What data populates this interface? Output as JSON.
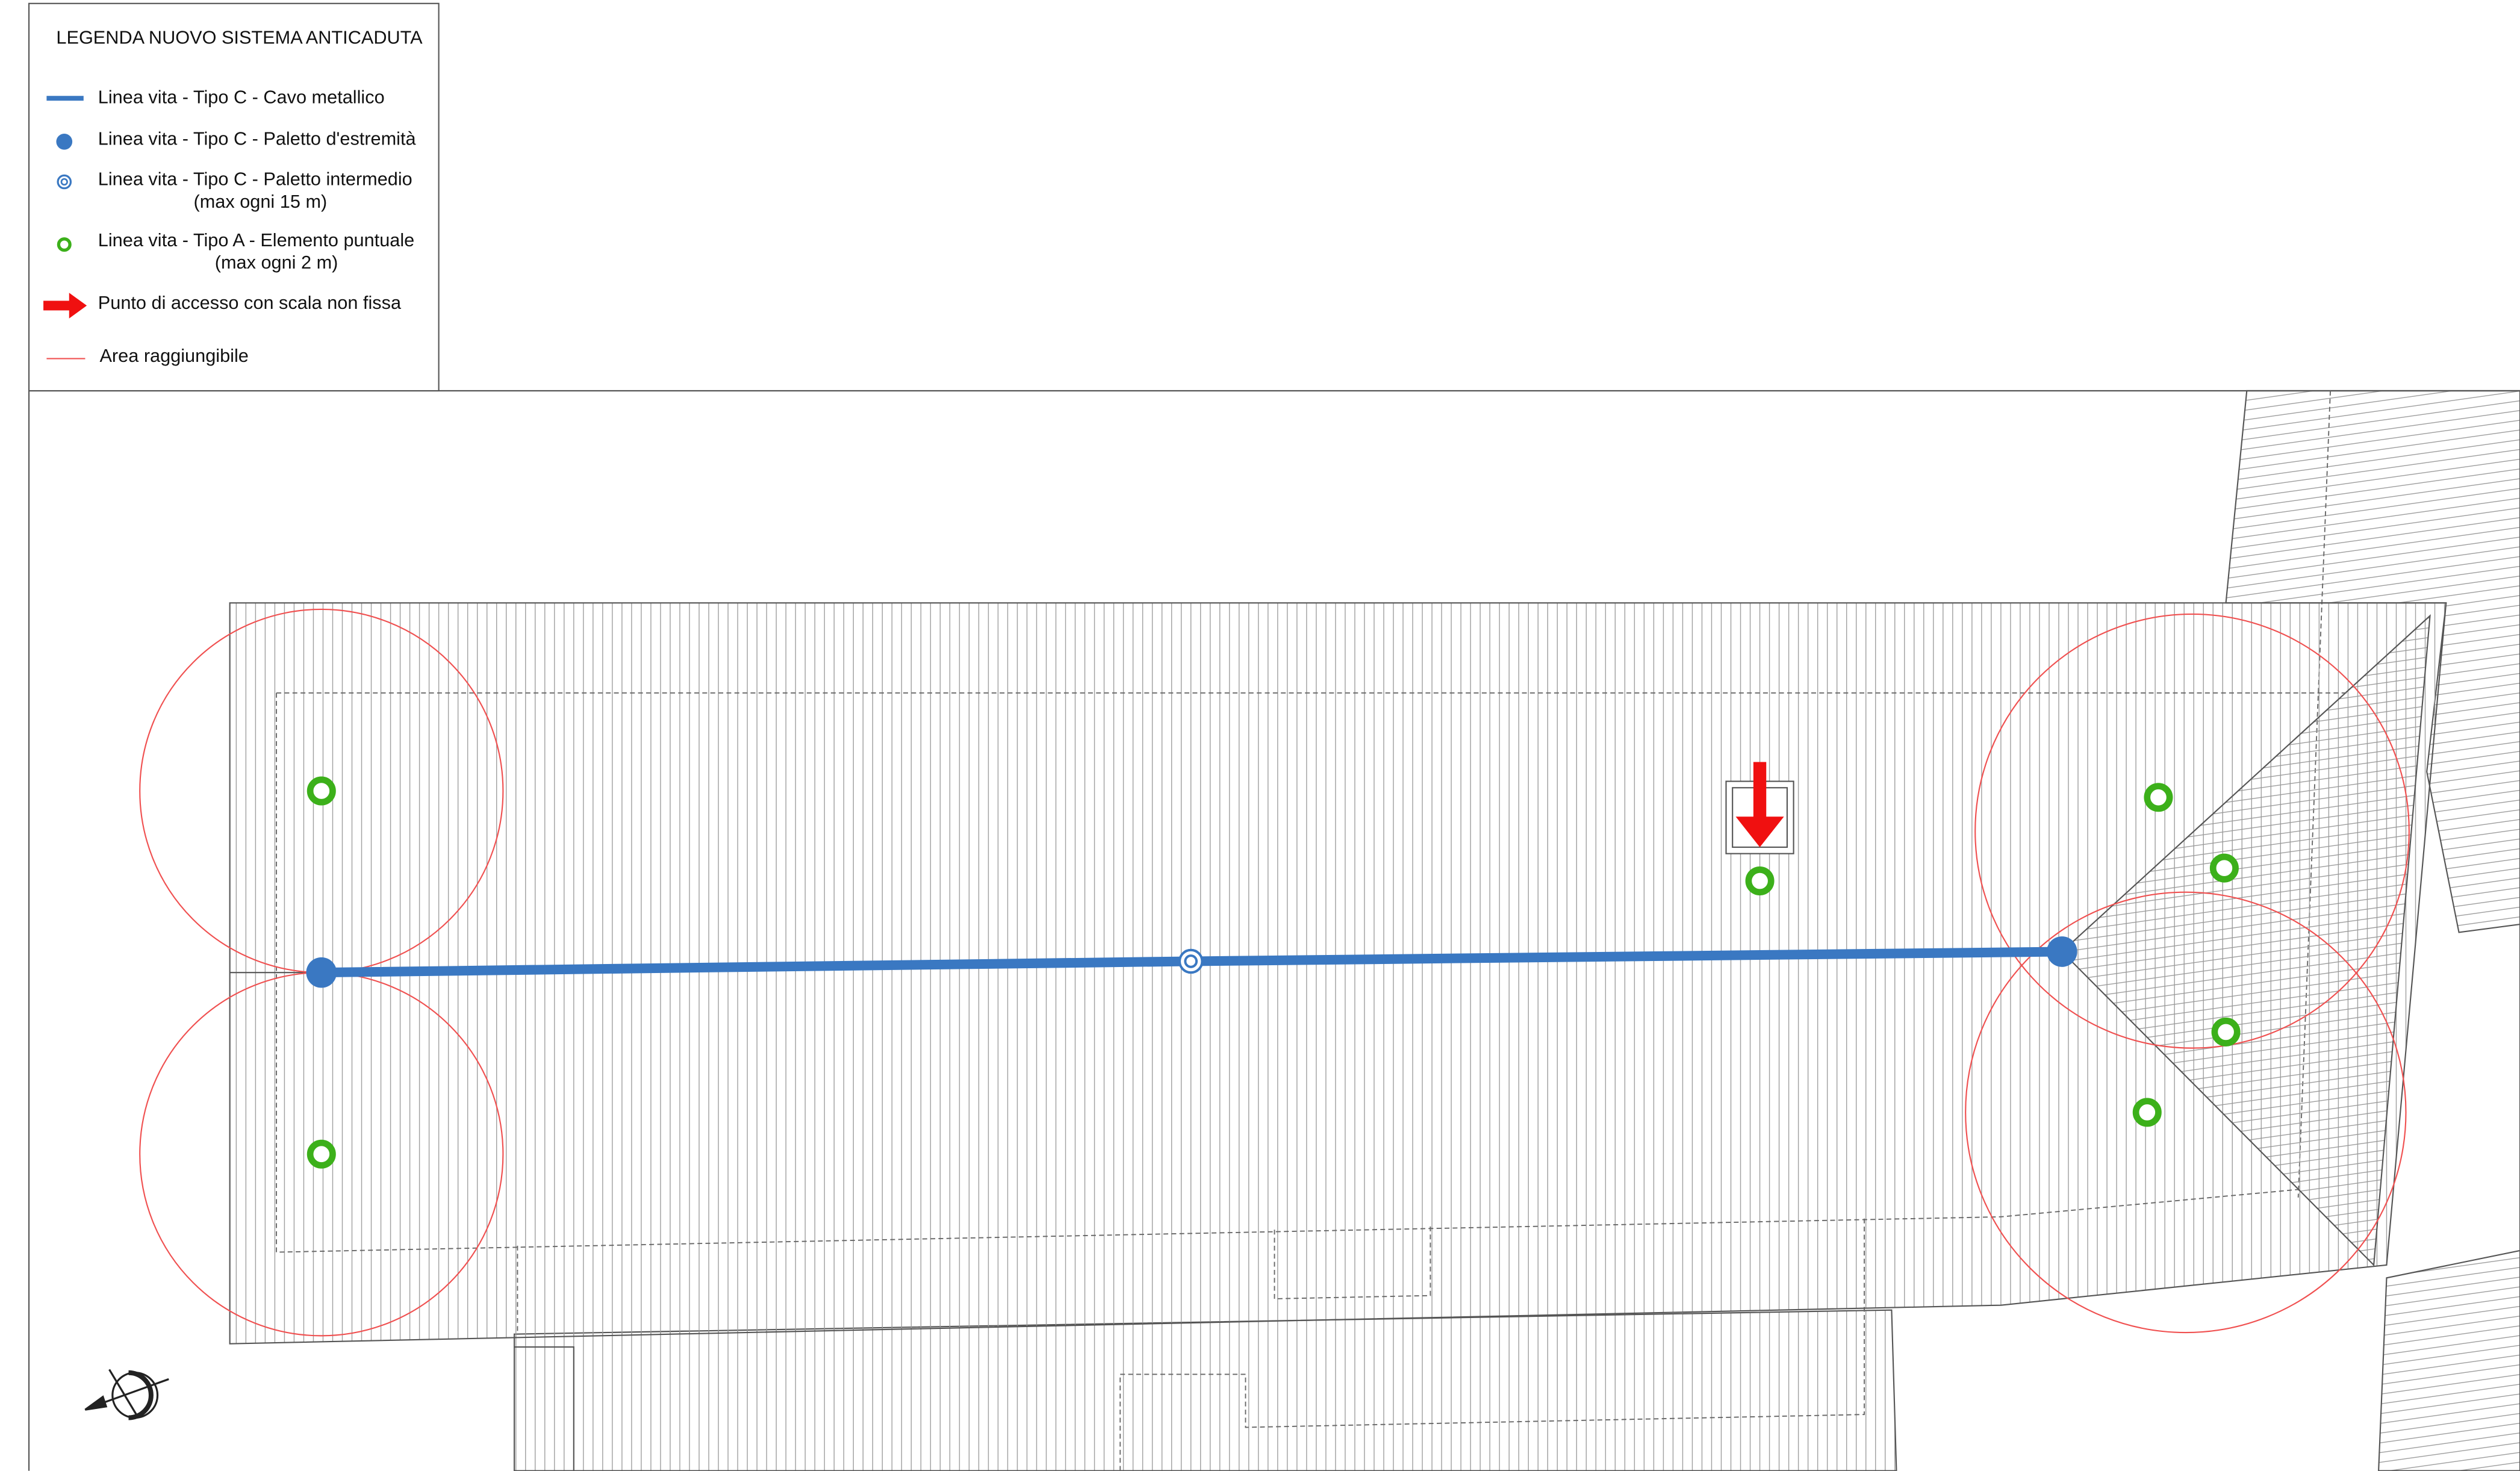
{
  "legend": {
    "title": "LEGENDA NUOVO SISTEMA ANTICADUTA",
    "items": [
      {
        "label": "Linea vita - Tipo C - Cavo metallico"
      },
      {
        "label": "Linea vita - Tipo C - Paletto d'estremità"
      },
      {
        "label": "Linea vita - Tipo C - Paletto intermedio",
        "note": "(max ogni 15 m)"
      },
      {
        "label": "Linea vita - Tipo A - Elemento puntuale",
        "note": "(max ogni 2 m)"
      },
      {
        "label": "Punto di accesso con scala non fissa"
      },
      {
        "label": "Area raggiungibile"
      }
    ]
  }
}
